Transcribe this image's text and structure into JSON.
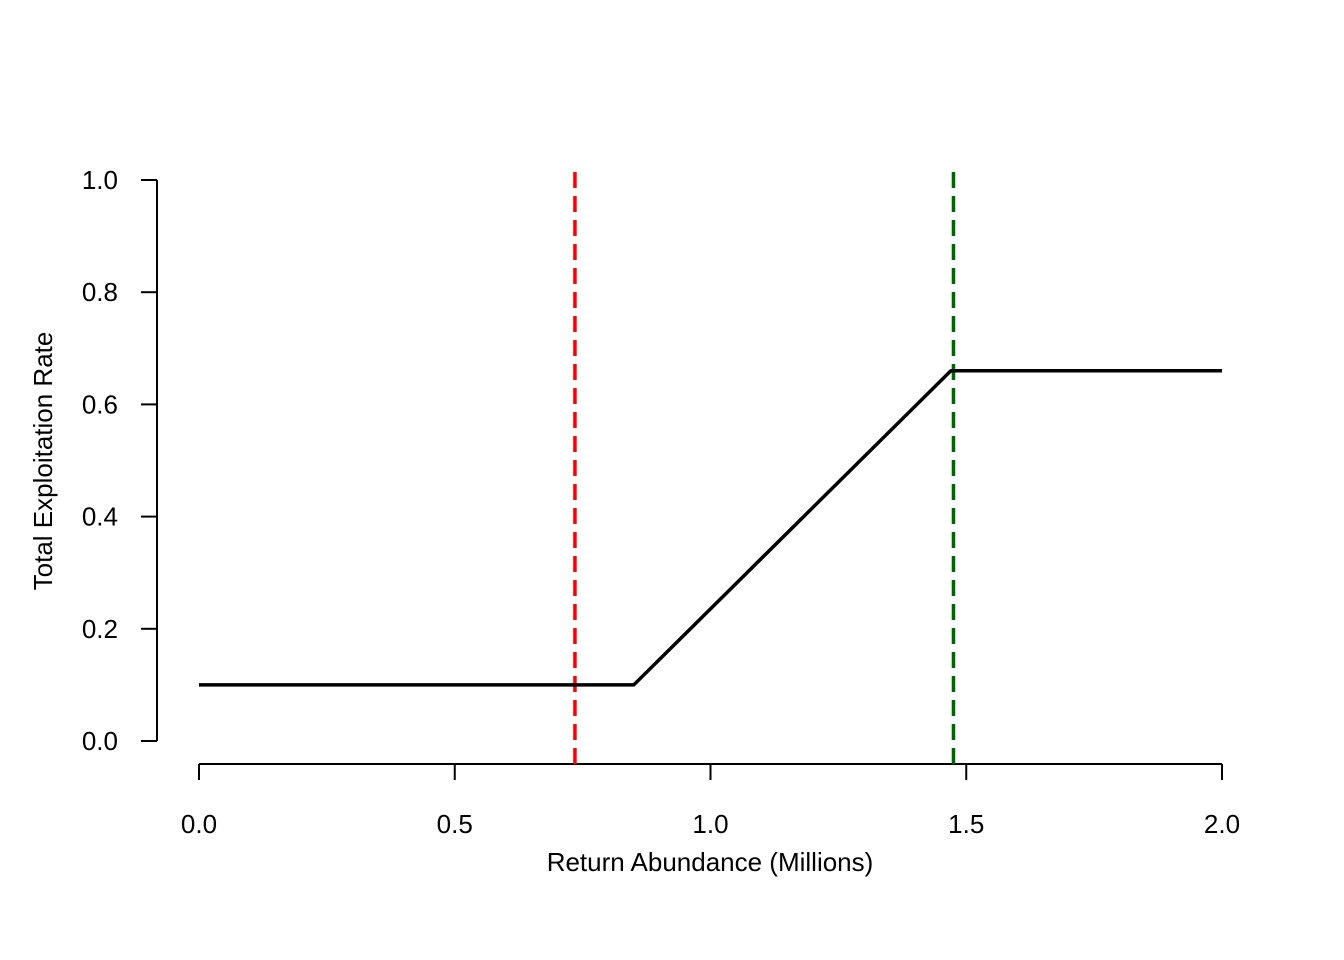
{
  "chart_data": {
    "type": "line",
    "title": "",
    "xlabel": "Return Abundance (Millions)",
    "ylabel": "Total Exploitation Rate",
    "xlim": [
      0,
      2
    ],
    "ylim": [
      0,
      1
    ],
    "x_ticks": [
      "0.0",
      "0.5",
      "1.0",
      "1.5",
      "2.0"
    ],
    "y_ticks": [
      "0.0",
      "0.2",
      "0.4",
      "0.6",
      "0.8",
      "1.0"
    ],
    "grid": false,
    "legend": "none",
    "series": [
      {
        "color": "#000000",
        "x": [
          0.0,
          0.85,
          1.47,
          2.0
        ],
        "y": [
          0.1,
          0.1,
          0.66,
          0.66
        ]
      }
    ],
    "reference_lines": [
      {
        "orientation": "vertical",
        "x": 0.735,
        "color": "#ff0000",
        "style": "dashed"
      },
      {
        "orientation": "vertical",
        "x": 1.475,
        "color": "#006400",
        "style": "dashed"
      }
    ]
  }
}
